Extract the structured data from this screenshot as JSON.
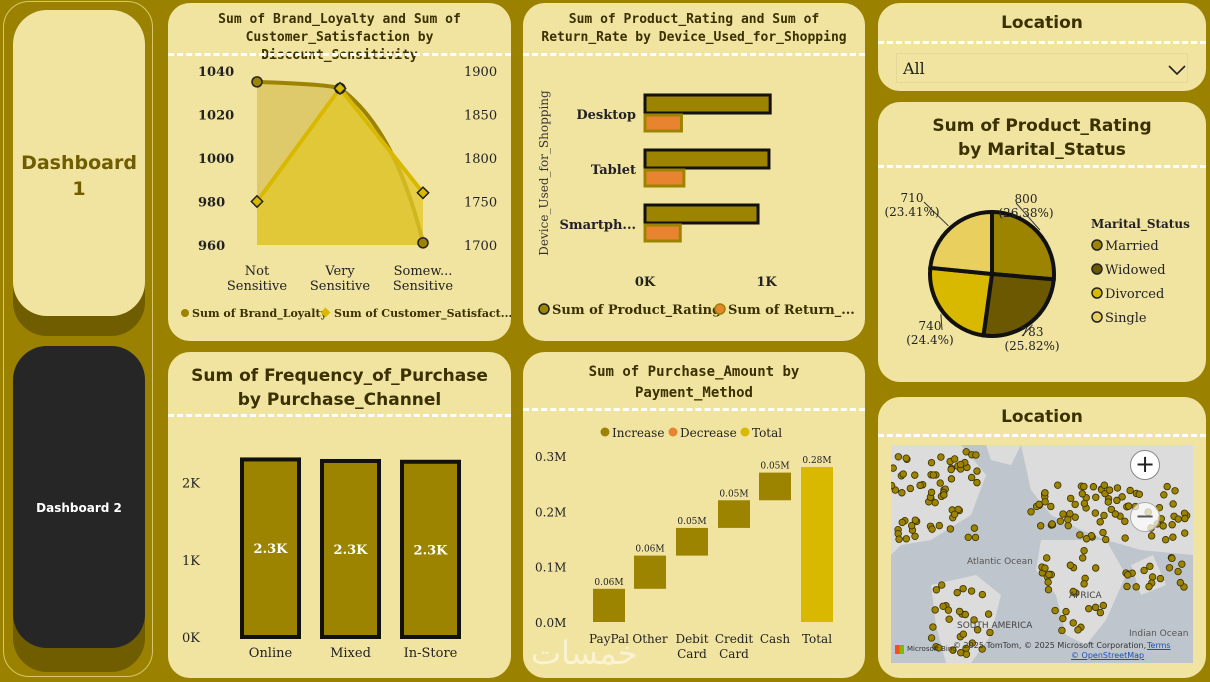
{
  "nav": {
    "dashboard1": "Dashboard\n1",
    "dashboard2": "Dashboard 2"
  },
  "colors": {
    "bg": "#9a8200",
    "panel": "#f1e4a1",
    "olive": "#9c8300",
    "gold": "#d9b800",
    "orange": "#e8842f",
    "dark_olive": "#6b5800",
    "light_gold": "#e8cf5e"
  },
  "loyalty_chart": {
    "title": "Sum of Brand_Loyalty and Sum of Customer_Satisfaction by Discount_Sensitivity",
    "chart_data": {
      "type": "line",
      "categories": [
        "Not Sensitive",
        "Very Sensitive",
        "Somew... Sensitive"
      ],
      "category_lines": [
        [
          "Not",
          "Sensitive"
        ],
        [
          "Very",
          "Sensitive"
        ],
        [
          "Somew...",
          "Sensitive"
        ]
      ],
      "series": [
        {
          "name": "Sum of Brand_Loyalty",
          "axis": "left",
          "values": [
            1035,
            1032,
            961
          ]
        },
        {
          "name": "Sum of Customer_Satisfact...",
          "axis": "right",
          "values": [
            1750,
            1880,
            1760
          ]
        }
      ],
      "y_left_ticks": [
        "1040",
        "1020",
        "1000",
        "980",
        "960"
      ],
      "y_left_range": [
        960,
        1040
      ],
      "y_right_ticks": [
        "1900",
        "1850",
        "1800",
        "1750",
        "1700"
      ],
      "y_right_range": [
        1700,
        1900
      ]
    }
  },
  "device_chart": {
    "title": "Sum of Product_Rating and Sum of Return_Rate by Device_Used_for_Shopping",
    "chart_data": {
      "type": "bar",
      "orientation": "horizontal",
      "ylabel": "Device_Used_for_Shopping",
      "categories": [
        "Desktop",
        "Tablet",
        "Smartph..."
      ],
      "series": [
        {
          "name": "Sum of Product_Rating",
          "values": [
            1030,
            1020,
            930
          ]
        },
        {
          "name": "Sum of Return_...",
          "values": [
            300,
            320,
            290
          ]
        }
      ],
      "x_ticks": [
        "0K",
        "1K"
      ],
      "x_range": [
        0,
        1300
      ]
    }
  },
  "location_slicer": {
    "title": "Location",
    "value": "All"
  },
  "marital_chart": {
    "title": "Sum of Product_Rating by Marital_Status",
    "legend_title": "Marital_Status",
    "chart_data": {
      "type": "pie",
      "slices": [
        {
          "name": "Married",
          "value": 800,
          "label": "800",
          "pct": "(26.38%)",
          "color": "#9c8300"
        },
        {
          "name": "Widowed",
          "value": 783,
          "label": "783",
          "pct": "(25.82%)",
          "color": "#6b5800"
        },
        {
          "name": "Divorced",
          "value": 740,
          "label": "740",
          "pct": "(24.4%)",
          "color": "#d9b800"
        },
        {
          "name": "Single",
          "value": 710,
          "label": "710",
          "pct": "(23.41%)",
          "color": "#e8cf5e"
        }
      ]
    }
  },
  "frequency_chart": {
    "title": "Sum of Frequency_of_Purchase by Purchase_Channel",
    "chart_data": {
      "type": "bar",
      "categories": [
        "Online",
        "Mixed",
        "In-Store"
      ],
      "values": [
        2300,
        2280,
        2270
      ],
      "data_labels": [
        "2.3K",
        "2.3K",
        "2.3K"
      ],
      "y_ticks": [
        "2K",
        "1K",
        "0K"
      ],
      "y_range": [
        0,
        2500
      ]
    }
  },
  "purchase_chart": {
    "title": "Sum of Purchase_Amount by Payment_Method",
    "legend": [
      "Increase",
      "Decrease",
      "Total"
    ],
    "chart_data": {
      "type": "bar",
      "subtype": "waterfall",
      "categories": [
        "PayPal",
        "Other",
        "Debit Card",
        "Credit Card",
        "Cash",
        "Total"
      ],
      "category_lines": [
        [
          "PayPal"
        ],
        [
          "Other"
        ],
        [
          "Debit",
          "Card"
        ],
        [
          "Credit",
          "Card"
        ],
        [
          "Cash"
        ],
        [
          "Total"
        ]
      ],
      "values": [
        0.06,
        0.06,
        0.05,
        0.05,
        0.05,
        0.28
      ],
      "data_labels": [
        "0.06M",
        "0.06M",
        "0.05M",
        "0.05M",
        "0.05M",
        "0.28M"
      ],
      "y_ticks": [
        "0.3M",
        "0.2M",
        "0.1M",
        "0.0M"
      ],
      "y_range": [
        0,
        0.3
      ]
    }
  },
  "map": {
    "title": "Location",
    "ocean_labels": [
      "Atlantic Ocean",
      "Indian Ocean"
    ],
    "region_labels": [
      "SOUTH AMERICA",
      "AFRICA"
    ],
    "attribution": "© 2025 TomTom, © 2025 Microsoft Corporation,",
    "terms": "Terms",
    "osm": "© OpenStreetMap",
    "brand": "Microsoft Bing",
    "zoom_in": "+",
    "zoom_out": "−"
  },
  "watermark": "خمسات"
}
